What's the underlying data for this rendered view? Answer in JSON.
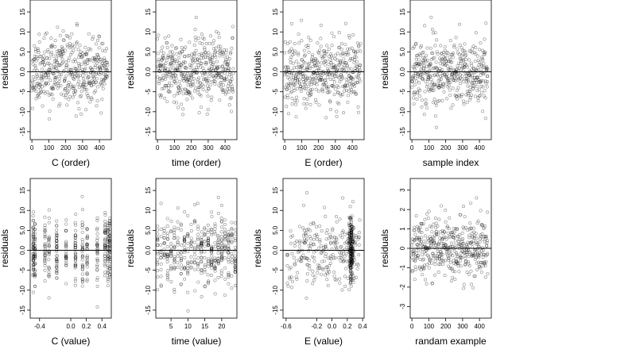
{
  "chart_data": [
    {
      "type": "scatter",
      "xlabel": "C (order)",
      "ylabel": "residuals",
      "xlim": [
        -10,
        470
      ],
      "ylim": [
        -17,
        18
      ],
      "xticks": [
        0,
        100,
        200,
        300,
        400
      ],
      "xtick_labels": [
        "0",
        "100",
        "200",
        "300",
        "400"
      ],
      "yticks": [
        -15,
        -10,
        -5,
        0,
        5,
        10,
        15
      ],
      "ytick_labels": [
        "-15",
        "-10",
        "-5",
        "0.0",
        "5.0",
        "10",
        "15"
      ],
      "reference_line_y": 0,
      "generator": "order",
      "seed": 11,
      "n": 450,
      "sd": 5.2
    },
    {
      "type": "scatter",
      "xlabel": "time (order)",
      "ylabel": "residuals",
      "xlim": [
        -10,
        470
      ],
      "ylim": [
        -17,
        18
      ],
      "xticks": [
        0,
        100,
        200,
        300,
        400
      ],
      "xtick_labels": [
        "0",
        "100",
        "200",
        "300",
        "400"
      ],
      "yticks": [
        -15,
        -10,
        -5,
        0,
        5,
        10,
        15
      ],
      "ytick_labels": [
        "-15",
        "-10",
        "-5",
        "0.0",
        "5.0",
        "10",
        "15"
      ],
      "reference_line_y": 0,
      "generator": "order",
      "seed": 23,
      "n": 450,
      "sd": 5.2
    },
    {
      "type": "scatter",
      "xlabel": "E (order)",
      "ylabel": "residuals",
      "xlim": [
        -10,
        470
      ],
      "ylim": [
        -17,
        18
      ],
      "xticks": [
        0,
        100,
        200,
        300,
        400
      ],
      "xtick_labels": [
        "0",
        "100",
        "200",
        "300",
        "400"
      ],
      "yticks": [
        -15,
        -10,
        -5,
        0,
        5,
        10,
        15
      ],
      "ytick_labels": [
        "-15",
        "-10",
        "-5",
        "0.0",
        "5.0",
        "10",
        "15"
      ],
      "reference_line_y": 0,
      "generator": "order",
      "seed": 37,
      "n": 450,
      "sd": 5.2
    },
    {
      "type": "scatter",
      "xlabel": "sample index",
      "ylabel": "residuals",
      "xlim": [
        -10,
        470
      ],
      "ylim": [
        -17,
        18
      ],
      "xticks": [
        0,
        100,
        200,
        300,
        400
      ],
      "xtick_labels": [
        "0",
        "100",
        "200",
        "300",
        "400"
      ],
      "yticks": [
        -15,
        -10,
        -5,
        0,
        5,
        10,
        15
      ],
      "ytick_labels": [
        "-15",
        "-10",
        "-5",
        "0.0",
        "5.0",
        "10",
        "15"
      ],
      "reference_line_y": 0,
      "generator": "order",
      "seed": 41,
      "n": 450,
      "sd": 5.2
    },
    {
      "type": "scatter",
      "xlabel": "C (value)",
      "ylabel": "residuals",
      "xlim": [
        -0.52,
        0.52
      ],
      "ylim": [
        -17,
        18
      ],
      "xticks": [
        -0.4,
        0.0,
        0.2,
        0.4
      ],
      "xtick_labels": [
        "-0.4",
        "0.0",
        "0.2",
        "0.4"
      ],
      "yticks": [
        -15,
        -10,
        -5,
        0,
        5,
        10,
        15
      ],
      "ytick_labels": [
        "-15",
        "-10",
        "-5",
        "0.0",
        "5.0",
        "10",
        "15"
      ],
      "reference_line_y": 0,
      "generator": "levels",
      "seed": 53,
      "n": 450,
      "sd": 5.2,
      "levels": [
        -0.48,
        -0.46,
        -0.33,
        -0.28,
        -0.18,
        -0.06,
        0.06,
        0.15,
        0.21,
        0.34,
        0.44,
        0.48,
        0.5
      ]
    },
    {
      "type": "scatter",
      "xlabel": "time (value)",
      "ylabel": "residuals",
      "xlim": [
        0.5,
        24.5
      ],
      "ylim": [
        -17,
        18
      ],
      "xticks": [
        5,
        10,
        15,
        20
      ],
      "xtick_labels": [
        "5",
        "10",
        "15",
        "20"
      ],
      "yticks": [
        -15,
        -10,
        -5,
        0,
        5,
        10,
        15
      ],
      "ytick_labels": [
        "-15",
        "-10",
        "-5",
        "0.0",
        "5.0",
        "10",
        "15"
      ],
      "reference_line_y": 0,
      "generator": "levels",
      "seed": 67,
      "n": 450,
      "sd": 5.2,
      "levels": [
        1,
        2,
        3,
        4,
        5,
        6,
        7,
        8,
        9,
        10,
        11,
        12,
        13,
        14,
        15,
        16,
        17,
        18,
        19,
        20,
        21,
        22,
        23,
        24
      ]
    },
    {
      "type": "scatter",
      "xlabel": "E (value)",
      "ylabel": "residuals",
      "xlim": [
        -0.64,
        0.42
      ],
      "ylim": [
        -17,
        18
      ],
      "xticks": [
        -0.6,
        -0.2,
        0.0,
        0.2,
        0.4
      ],
      "xtick_labels": [
        "-0.6",
        "-0.2",
        "0.0",
        "0.2",
        "0.4"
      ],
      "yticks": [
        -15,
        -10,
        -5,
        0,
        5,
        10,
        15
      ],
      "ytick_labels": [
        "-15",
        "-10",
        "-5",
        "0.0",
        "5.0",
        "10",
        "15"
      ],
      "reference_line_y": 0,
      "generator": "skewed",
      "seed": 79,
      "n": 450,
      "sd": 5.2,
      "dense_x": 0.25
    },
    {
      "type": "scatter",
      "xlabel": "randam example",
      "ylabel": "residuals",
      "xlim": [
        -10,
        470
      ],
      "ylim": [
        -3.6,
        3.6
      ],
      "xticks": [
        0,
        100,
        200,
        300,
        400
      ],
      "xtick_labels": [
        "0",
        "100",
        "200",
        "300",
        "400"
      ],
      "yticks": [
        -3,
        -2,
        -1,
        0,
        1,
        2,
        3
      ],
      "ytick_labels": [
        "-3",
        "-2",
        "-1",
        "0",
        "1",
        "2",
        "3"
      ],
      "reference_line_y": 0,
      "generator": "order",
      "seed": 97,
      "n": 450,
      "sd": 1.0
    }
  ]
}
